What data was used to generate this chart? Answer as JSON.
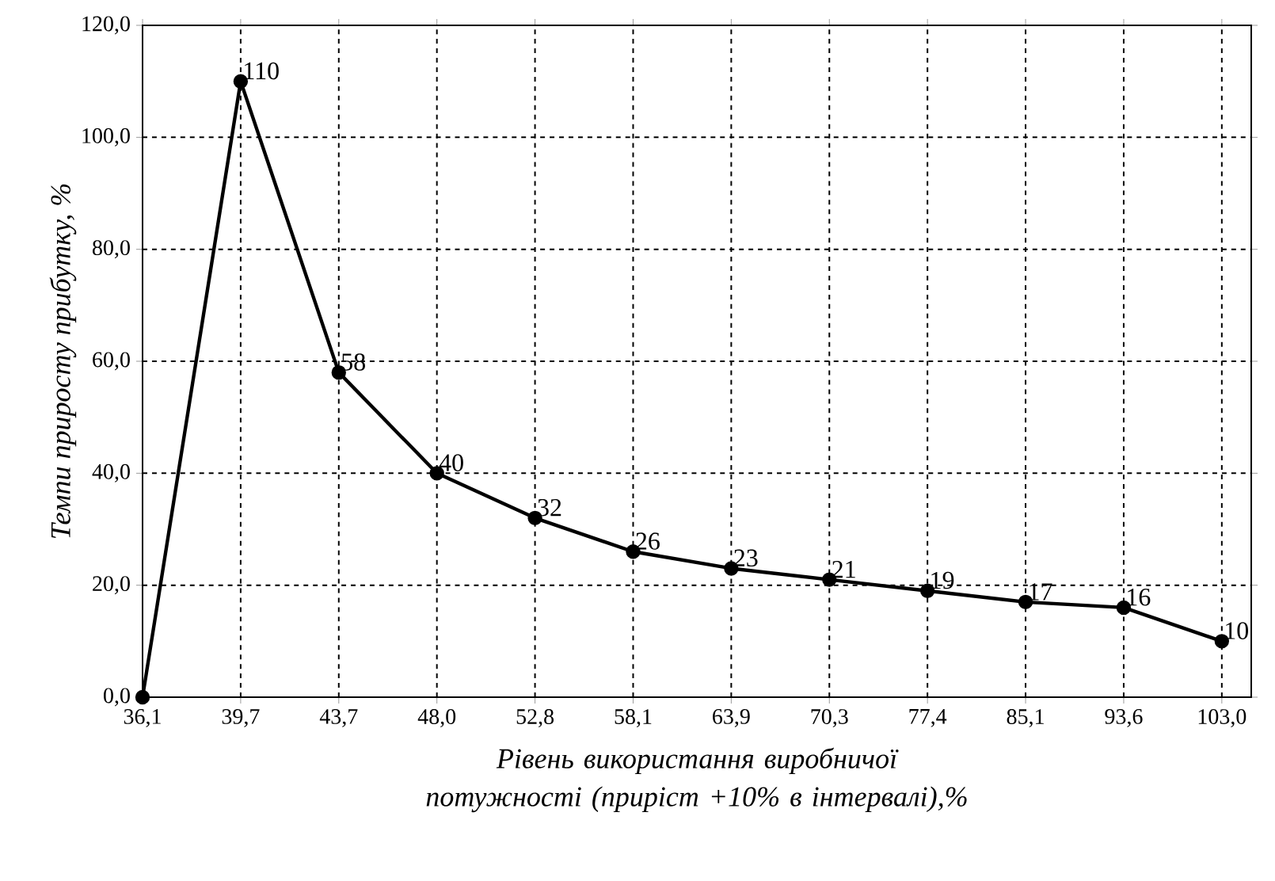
{
  "chart_data": {
    "type": "line",
    "xlabel": "Рівень використання виробничої потужності (приріст +10% в інтервалі),%",
    "ylabel": "Темпи приросту прибутку, %",
    "categories": [
      "36,1",
      "39,7",
      "43,7",
      "48,0",
      "52,8",
      "58,1",
      "63,9",
      "70,3",
      "77,4",
      "85,1",
      "93,6",
      "103,0"
    ],
    "values": [
      0,
      110,
      58,
      40,
      32,
      26,
      23,
      21,
      19,
      17,
      16,
      10
    ],
    "value_labels": [
      null,
      "110",
      "58",
      "40",
      "32",
      "26",
      "23",
      "21",
      "19",
      "17",
      "16",
      "10"
    ],
    "color": "#000000",
    "ylim": [
      0,
      120
    ],
    "yticks": [
      {
        "value": 0,
        "label": "0,0"
      },
      {
        "value": 20,
        "label": "20,0"
      },
      {
        "value": 40,
        "label": "40,0"
      },
      {
        "value": 60,
        "label": "60,0"
      },
      {
        "value": 80,
        "label": "80,0"
      },
      {
        "value": 100,
        "label": "100,0"
      },
      {
        "value": 120,
        "label": "120,0"
      }
    ],
    "grid": true,
    "marker": "circle",
    "line_style": "solid"
  }
}
